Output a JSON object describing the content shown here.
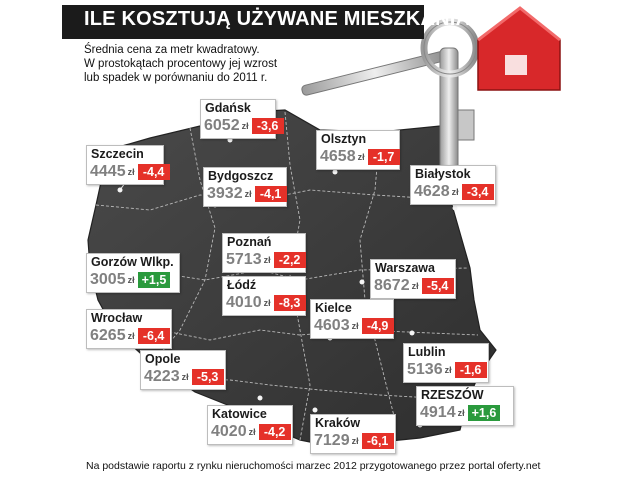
{
  "title": "ILE KOSZTUJĄ UŻYWANE MIESZKANIA",
  "subtitle": [
    "Średnia cena za metr kwadratowy.",
    "W prostokątach procentowy jej wzrost",
    "lub spadek w porównaniu do 2011 r."
  ],
  "footer": "Na podstawie raportu z rynku nieruchomości marzec 2012 przygotowanego przez portal oferty.net",
  "currency": "zł",
  "colors": {
    "decrease": "#e53129",
    "increase": "#2a9a3d",
    "map": "#3b3b3b",
    "title_bar": "#1b1b1b",
    "key_tag": "#d8282a"
  },
  "icons": [
    "keys-with-house-tag-icon"
  ],
  "cities": [
    {
      "name": "Gdańsk",
      "price": "6052",
      "change": "-3,6",
      "trend": "down"
    },
    {
      "name": "Szczecin",
      "price": "4445",
      "change": "-4,4",
      "trend": "down"
    },
    {
      "name": "Olsztyn",
      "price": "4658",
      "change": "-1,7",
      "trend": "down"
    },
    {
      "name": "Bydgoszcz",
      "price": "3932",
      "change": "-4,1",
      "trend": "down"
    },
    {
      "name": "Białystok",
      "price": "4628",
      "change": "-3,4",
      "trend": "down"
    },
    {
      "name": "Poznań",
      "price": "5713",
      "change": "-2,2",
      "trend": "down"
    },
    {
      "name": "Gorzów Wlkp.",
      "price": "3005",
      "change": "+1,5",
      "trend": "up"
    },
    {
      "name": "Warszawa",
      "price": "8672",
      "change": "-5,4",
      "trend": "down"
    },
    {
      "name": "Łódź",
      "price": "4010",
      "change": "-8,3",
      "trend": "down"
    },
    {
      "name": "Wrocław",
      "price": "6265",
      "change": "-6,4",
      "trend": "down"
    },
    {
      "name": "Kielce",
      "price": "4603",
      "change": "-4,9",
      "trend": "down"
    },
    {
      "name": "Opole",
      "price": "4223",
      "change": "-5,3",
      "trend": "down"
    },
    {
      "name": "Lublin",
      "price": "5136",
      "change": "-1,6",
      "trend": "down"
    },
    {
      "name": "RZESZÓW",
      "price": "4914",
      "change": "+1,6",
      "trend": "up"
    },
    {
      "name": "Katowice",
      "price": "4020",
      "change": "-4,2",
      "trend": "down"
    },
    {
      "name": "Kraków",
      "price": "7129",
      "change": "-6,1",
      "trend": "down"
    }
  ]
}
